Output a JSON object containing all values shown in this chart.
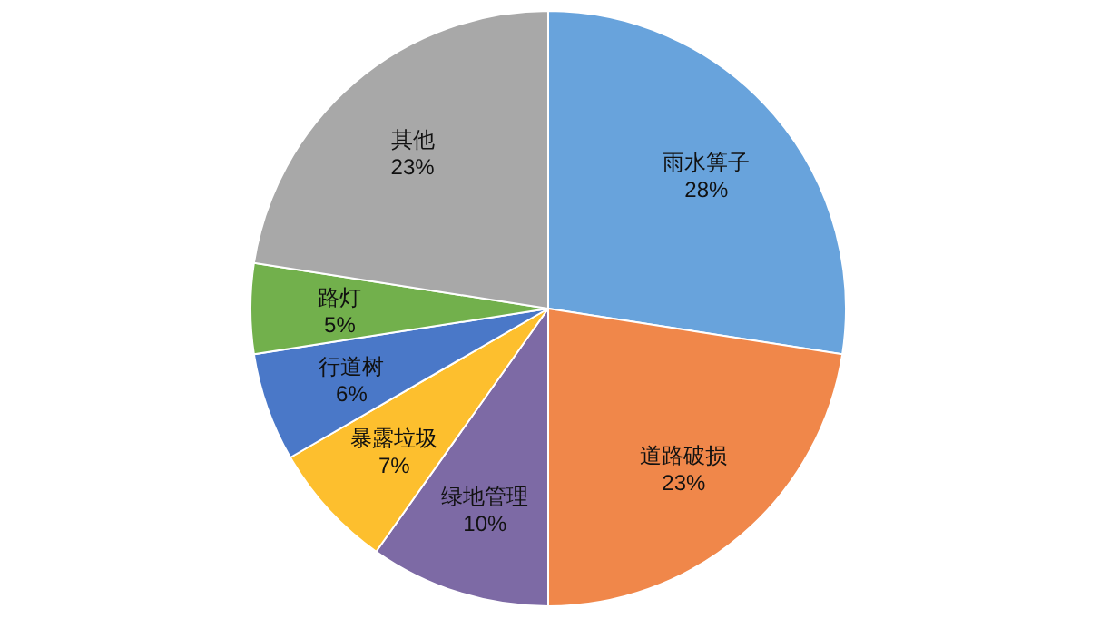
{
  "chart_data": {
    "type": "pie",
    "categories": [
      "雨水箅子",
      "道路破损",
      "绿地管理",
      "暴露垃圾",
      "行道树",
      "路灯",
      "其他"
    ],
    "values": [
      28,
      23,
      10,
      7,
      6,
      5,
      23
    ],
    "colors": [
      "#68a3dc",
      "#f0874a",
      "#7d6aa5",
      "#fdbf2e",
      "#4a78c8",
      "#72b04c",
      "#a8a8a8"
    ],
    "value_labels": [
      "28%",
      "23%",
      "10%",
      "7%",
      "6%",
      "5%",
      "23%"
    ],
    "data_labels": true,
    "legend": false
  }
}
